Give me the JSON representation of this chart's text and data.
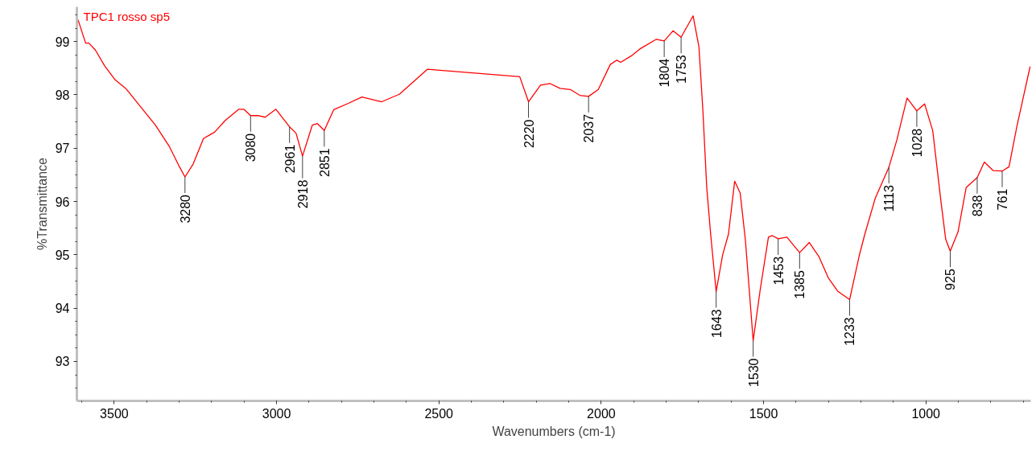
{
  "chart_data": {
    "type": "line",
    "xlabel": "Wavenumbers (cm-1)",
    "ylabel": "%Transmittance",
    "xlim": [
      3615,
      677
    ],
    "ylim": [
      92.26,
      99.65
    ],
    "xticks": [
      3500,
      3000,
      2500,
      2000,
      1500,
      1000
    ],
    "yticks": [
      93,
      94,
      95,
      96,
      97,
      98,
      99
    ],
    "grid": false,
    "marker": "none",
    "line_style": "solid",
    "series": [
      {
        "name": "TPC1 rosso sp5",
        "color": "#ff0000",
        "x": [
          3615,
          3610,
          3588,
          3578,
          3558,
          3529,
          3497,
          3463,
          3422,
          3373,
          3331,
          3299,
          3282,
          3257,
          3225,
          3191,
          3158,
          3116,
          3101,
          3080,
          3055,
          3035,
          3002,
          2960,
          2940,
          2920,
          2890,
          2874,
          2853,
          2824,
          2779,
          2737,
          2676,
          2622,
          2535,
          2251,
          2224,
          2187,
          2157,
          2127,
          2095,
          2066,
          2039,
          2009,
          1972,
          1952,
          1940,
          1905,
          1881,
          1831,
          1806,
          1779,
          1754,
          1717,
          1699,
          1687,
          1675,
          1663,
          1646,
          1626,
          1608,
          1589,
          1572,
          1556,
          1532,
          1510,
          1485,
          1473,
          1455,
          1428,
          1389,
          1359,
          1329,
          1300,
          1272,
          1235,
          1205,
          1188,
          1156,
          1114,
          1090,
          1058,
          1028,
          1004,
          979,
          954,
          939,
          925,
          901,
          876,
          842,
          820,
          793,
          765,
          744,
          719,
          679
        ],
        "values": [
          99.45,
          99.38,
          98.97,
          98.97,
          98.84,
          98.54,
          98.28,
          98.11,
          97.8,
          97.43,
          97.04,
          96.65,
          96.46,
          96.7,
          97.18,
          97.3,
          97.52,
          97.73,
          97.73,
          97.61,
          97.61,
          97.58,
          97.73,
          97.4,
          97.28,
          96.85,
          97.43,
          97.46,
          97.33,
          97.72,
          97.84,
          97.96,
          97.87,
          98.01,
          98.48,
          98.34,
          97.87,
          98.18,
          98.21,
          98.12,
          98.1,
          97.99,
          97.97,
          98.1,
          98.57,
          98.65,
          98.61,
          98.74,
          98.86,
          99.04,
          99.01,
          99.2,
          99.08,
          99.48,
          98.9,
          97.72,
          96.26,
          95.39,
          94.31,
          95.0,
          95.39,
          96.38,
          96.16,
          95.28,
          93.39,
          94.36,
          95.33,
          95.36,
          95.3,
          95.33,
          95.04,
          95.23,
          94.96,
          94.56,
          94.32,
          94.16,
          94.99,
          95.39,
          96.06,
          96.64,
          97.14,
          97.94,
          97.7,
          97.83,
          97.33,
          96.02,
          95.29,
          95.07,
          95.43,
          96.26,
          96.45,
          96.74,
          96.58,
          96.57,
          96.65,
          97.43,
          98.53
        ]
      }
    ],
    "annotations": [
      {
        "text": "3280",
        "x": 3282,
        "y": 96.46
      },
      {
        "text": "3080",
        "x": 3080,
        "y": 97.61
      },
      {
        "text": "2961",
        "x": 2960,
        "y": 97.4
      },
      {
        "text": "2918",
        "x": 2920,
        "y": 96.85
      },
      {
        "text": "2851",
        "x": 2853,
        "y": 97.33
      },
      {
        "text": "2220",
        "x": 2224,
        "y": 97.87
      },
      {
        "text": "2037",
        "x": 2039,
        "y": 97.97
      },
      {
        "text": "1804",
        "x": 1806,
        "y": 99.01
      },
      {
        "text": "1753",
        "x": 1754,
        "y": 99.08
      },
      {
        "text": "1643",
        "x": 1646,
        "y": 94.31
      },
      {
        "text": "1530",
        "x": 1532,
        "y": 93.39
      },
      {
        "text": "1453",
        "x": 1455,
        "y": 95.3
      },
      {
        "text": "1385",
        "x": 1389,
        "y": 95.04
      },
      {
        "text": "1233",
        "x": 1235,
        "y": 94.16
      },
      {
        "text": "1113",
        "x": 1114,
        "y": 96.64
      },
      {
        "text": "1028",
        "x": 1028,
        "y": 97.7
      },
      {
        "text": "925",
        "x": 925,
        "y": 95.07
      },
      {
        "text": "838",
        "x": 842,
        "y": 96.45
      },
      {
        "text": "761",
        "x": 765,
        "y": 96.57
      }
    ]
  }
}
